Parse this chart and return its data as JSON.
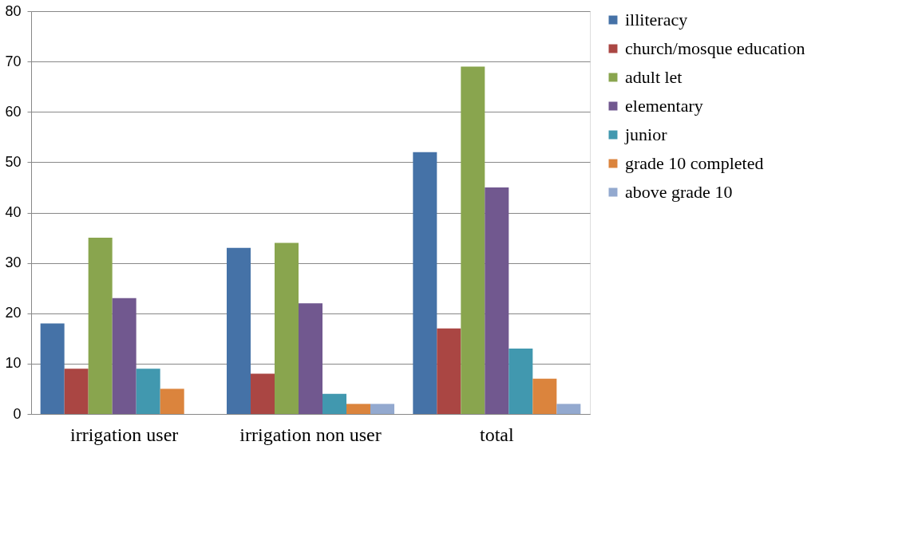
{
  "chart_data": {
    "type": "bar",
    "categories": [
      "irrigation user",
      "irrigation non user",
      "total"
    ],
    "series": [
      {
        "name": "illiteracy",
        "color": "#4572a7",
        "values": [
          18,
          33,
          52
        ]
      },
      {
        "name": "church/mosque education",
        "color": "#aa4643",
        "values": [
          9,
          8,
          17
        ]
      },
      {
        "name": "adult let",
        "color": "#89a54e",
        "values": [
          35,
          34,
          69
        ]
      },
      {
        "name": "elementary",
        "color": "#71588f",
        "values": [
          23,
          22,
          45
        ]
      },
      {
        "name": "junior",
        "color": "#4198af",
        "values": [
          9,
          4,
          13
        ]
      },
      {
        "name": "grade 10 completed",
        "color": "#db843d",
        "values": [
          5,
          2,
          7
        ]
      },
      {
        "name": "above grade 10",
        "color": "#93a9cf",
        "values": [
          0,
          2,
          2
        ]
      }
    ],
    "ylim": [
      0,
      80
    ],
    "yticks": [
      0,
      10,
      20,
      30,
      40,
      50,
      60,
      70,
      80
    ],
    "grid": "y",
    "legend": "right"
  }
}
